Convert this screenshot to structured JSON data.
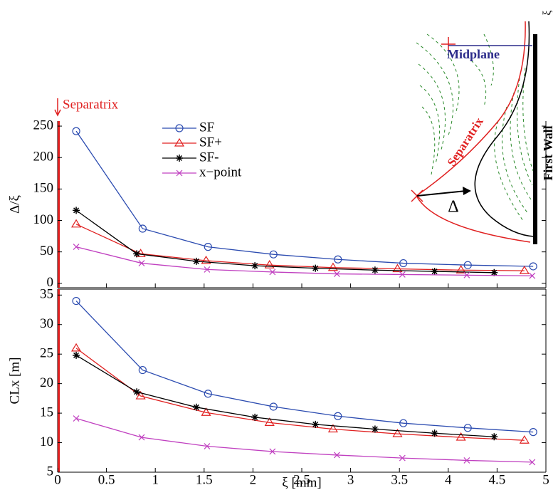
{
  "chart_data": [
    {
      "type": "line",
      "ylabel": "Δ/ξ",
      "xlim": [
        0,
        5
      ],
      "xticks": [
        0,
        0.5,
        1,
        1.5,
        2,
        2.5,
        3,
        3.5,
        4,
        4.5,
        5
      ],
      "show_xtick_labels": false,
      "ylim": [
        -7,
        258
      ],
      "yticks": [
        0,
        50,
        100,
        150,
        200,
        250
      ],
      "legend": true,
      "annotations": {
        "separatrix": "Separatrix",
        "midplane": "Midplane",
        "separatrix_inset": "Separatrix",
        "first_wall": "First Wall",
        "delta": "Δ",
        "xi": "ξ"
      },
      "series": [
        {
          "name": "SF",
          "color": "#2b4bb0",
          "marker": "circle",
          "x": [
            0.19,
            0.87,
            1.54,
            2.21,
            2.87,
            3.54,
            4.2,
            4.87
          ],
          "values": [
            242,
            87,
            58,
            46,
            38,
            32,
            29,
            27
          ]
        },
        {
          "name": "SF+",
          "color": "#e02020",
          "marker": "triangle",
          "x": [
            0.19,
            0.85,
            1.52,
            2.17,
            2.82,
            3.48,
            4.13,
            4.78
          ],
          "values": [
            94,
            47,
            36,
            29,
            25,
            23,
            21,
            20
          ]
        },
        {
          "name": "SF-",
          "color": "#000000",
          "marker": "star",
          "x": [
            0.19,
            0.81,
            1.42,
            2.02,
            2.64,
            3.25,
            3.86,
            4.47
          ],
          "values": [
            116,
            47,
            35,
            28,
            24,
            21,
            19,
            17
          ]
        },
        {
          "name": "x−point",
          "color": "#c040c0",
          "marker": "x",
          "x": [
            0.19,
            0.86,
            1.53,
            2.2,
            2.86,
            3.53,
            4.19,
            4.86
          ],
          "values": [
            58,
            32,
            22,
            18,
            15,
            14,
            13,
            12
          ]
        }
      ]
    },
    {
      "type": "line",
      "ylabel": "CLx [m]",
      "xlabel": "ξ [mm]",
      "xlim": [
        0,
        5
      ],
      "xticks": [
        0,
        0.5,
        1,
        1.5,
        2,
        2.5,
        3,
        3.5,
        4,
        4.5,
        5
      ],
      "show_xtick_labels": true,
      "ylim": [
        5,
        36
      ],
      "yticks": [
        5,
        10,
        15,
        20,
        25,
        30,
        35
      ],
      "legend": false,
      "series": [
        {
          "name": "SF",
          "color": "#2b4bb0",
          "marker": "circle",
          "x": [
            0.19,
            0.87,
            1.54,
            2.21,
            2.87,
            3.54,
            4.2,
            4.87
          ],
          "values": [
            34,
            22.3,
            18.3,
            16.1,
            14.5,
            13.3,
            12.5,
            11.8
          ]
        },
        {
          "name": "SF+",
          "color": "#e02020",
          "marker": "triangle",
          "x": [
            0.19,
            0.85,
            1.52,
            2.17,
            2.82,
            3.48,
            4.13,
            4.78
          ],
          "values": [
            26,
            17.9,
            15.1,
            13.4,
            12.3,
            11.5,
            10.9,
            10.4
          ]
        },
        {
          "name": "SF-",
          "color": "#000000",
          "marker": "star",
          "x": [
            0.19,
            0.81,
            1.42,
            2.02,
            2.64,
            3.25,
            3.86,
            4.47
          ],
          "values": [
            24.8,
            18.6,
            16.0,
            14.3,
            13.1,
            12.3,
            11.6,
            11.0
          ]
        },
        {
          "name": "x−point",
          "color": "#c040c0",
          "marker": "x",
          "x": [
            0.19,
            0.86,
            1.53,
            2.2,
            2.86,
            3.53,
            4.19,
            4.86
          ],
          "values": [
            14.1,
            10.9,
            9.4,
            8.5,
            7.9,
            7.4,
            7.0,
            6.7
          ]
        }
      ]
    }
  ]
}
